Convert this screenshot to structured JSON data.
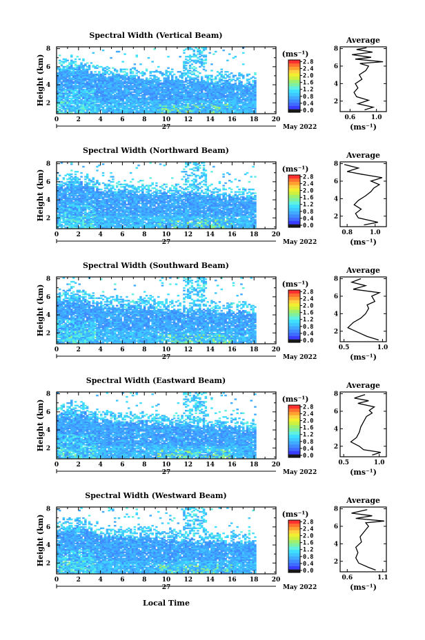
{
  "x_axis_title": "Local Time",
  "date_suffix": "May 2022",
  "day_label": "27",
  "y_axis_title": "Height (km)",
  "unit_label": "(ms⁻¹)",
  "profile_title": "Average",
  "profile_xlabel": "(ms⁻¹)",
  "colors": {
    "colormap": [
      "#1a1a1a",
      "#3a3cff",
      "#3f6cff",
      "#3f8cff",
      "#3faaff",
      "#3fc8ff",
      "#3fe0ff",
      "#5ff0e0",
      "#7ff0a0",
      "#a0f070",
      "#d0f040",
      "#f0f030",
      "#ffd040",
      "#ffa030",
      "#ff7030",
      "#ff3030"
    ]
  },
  "chart_data": [
    {
      "type": "heatmap",
      "title": "Spectral Width (Vertical Beam)",
      "xlabel": "Local Time",
      "ylabel": "Height (km)",
      "xlim": [
        0,
        20
      ],
      "ylim": [
        0.8,
        8.2
      ],
      "xticks": [
        "0",
        "2",
        "4",
        "6",
        "8",
        "10",
        "12",
        "14",
        "16",
        "18",
        "20"
      ],
      "yticks": [
        "2",
        "4",
        "6",
        "8"
      ],
      "data_extent_hours": [
        0,
        18
      ],
      "colorbar": {
        "label": "(ms⁻¹)",
        "ticks": [
          "2.8",
          "2.4",
          "2.0",
          "1.6",
          "1.2",
          "0.8",
          "0.4",
          "0.0"
        ],
        "range": [
          0.0,
          2.8
        ]
      },
      "profile": {
        "title": "Average",
        "xlabel": "(ms⁻¹)",
        "xticks": [
          "0.6",
          "1.0"
        ],
        "xlim": [
          0.45,
          1.15
        ],
        "yticks": [
          "2",
          "4",
          "6",
          "8"
        ],
        "points": [
          [
            0.82,
            1.0
          ],
          [
            0.95,
            1.3
          ],
          [
            0.72,
            1.7
          ],
          [
            0.88,
            2.1
          ],
          [
            0.7,
            2.5
          ],
          [
            0.66,
            3.0
          ],
          [
            0.72,
            3.5
          ],
          [
            0.68,
            4.0
          ],
          [
            0.78,
            4.5
          ],
          [
            0.74,
            5.0
          ],
          [
            0.84,
            5.5
          ],
          [
            0.88,
            6.0
          ],
          [
            0.75,
            6.3
          ],
          [
            1.1,
            6.5
          ],
          [
            0.68,
            6.8
          ],
          [
            0.92,
            7.0
          ],
          [
            0.63,
            7.3
          ],
          [
            0.94,
            7.6
          ],
          [
            0.7,
            7.9
          ],
          [
            0.85,
            8.1
          ]
        ]
      }
    },
    {
      "type": "heatmap",
      "title": "Spectral Width (Northward Beam)",
      "xlabel": "Local Time",
      "ylabel": "Height (km)",
      "xlim": [
        0,
        20
      ],
      "ylim": [
        0.8,
        8.2
      ],
      "xticks": [
        "0",
        "2",
        "4",
        "6",
        "8",
        "10",
        "12",
        "14",
        "16",
        "18",
        "20"
      ],
      "yticks": [
        "2",
        "4",
        "6",
        "8"
      ],
      "data_extent_hours": [
        0,
        18
      ],
      "colorbar": {
        "label": "(ms⁻¹)",
        "ticks": [
          "2.8",
          "2.4",
          "2.0",
          "1.6",
          "1.2",
          "0.8",
          "0.4",
          "0.0"
        ],
        "range": [
          0.0,
          2.8
        ]
      },
      "profile": {
        "title": "Average",
        "xlabel": "(ms⁻¹)",
        "xticks": [
          "0.8",
          "1.0"
        ],
        "xlim": [
          0.75,
          1.08
        ],
        "yticks": [
          "2",
          "4",
          "6",
          "8"
        ],
        "points": [
          [
            0.92,
            1.0
          ],
          [
            1.02,
            1.3
          ],
          [
            0.88,
            1.8
          ],
          [
            0.86,
            2.3
          ],
          [
            0.9,
            2.8
          ],
          [
            0.85,
            3.3
          ],
          [
            0.88,
            3.8
          ],
          [
            0.93,
            4.3
          ],
          [
            0.97,
            4.8
          ],
          [
            0.99,
            5.2
          ],
          [
            1.03,
            5.6
          ],
          [
            0.97,
            6.0
          ],
          [
            1.05,
            6.4
          ],
          [
            0.9,
            6.8
          ],
          [
            0.8,
            7.1
          ],
          [
            0.88,
            7.5
          ],
          [
            0.78,
            7.9
          ]
        ]
      }
    },
    {
      "type": "heatmap",
      "title": "Spectral Width (Southward Beam)",
      "xlabel": "Local Time",
      "ylabel": "Height (km)",
      "xlim": [
        0,
        20
      ],
      "ylim": [
        0.8,
        8.2
      ],
      "xticks": [
        "0",
        "2",
        "4",
        "6",
        "8",
        "10",
        "12",
        "14",
        "16",
        "18",
        "20"
      ],
      "yticks": [
        "2",
        "4",
        "6",
        "8"
      ],
      "data_extent_hours": [
        0,
        18
      ],
      "colorbar": {
        "label": "(ms⁻¹)",
        "ticks": [
          "2.8",
          "2.4",
          "2.0",
          "1.6",
          "1.2",
          "0.8",
          "0.4",
          "0.0"
        ],
        "range": [
          0.0,
          2.8
        ]
      },
      "profile": {
        "title": "Average",
        "xlabel": "(ms⁻¹)",
        "xticks": [
          "0.5",
          "1.0"
        ],
        "xlim": [
          0.45,
          1.05
        ],
        "yticks": [
          "2",
          "4",
          "6",
          "8"
        ],
        "points": [
          [
            0.95,
            1.0
          ],
          [
            0.8,
            1.4
          ],
          [
            0.7,
            1.8
          ],
          [
            0.55,
            2.4
          ],
          [
            0.62,
            3.0
          ],
          [
            0.72,
            3.5
          ],
          [
            0.78,
            4.0
          ],
          [
            0.82,
            4.6
          ],
          [
            0.8,
            5.0
          ],
          [
            0.9,
            5.4
          ],
          [
            0.86,
            6.0
          ],
          [
            0.96,
            6.4
          ],
          [
            0.62,
            6.8
          ],
          [
            0.78,
            7.2
          ],
          [
            0.6,
            7.6
          ],
          [
            0.72,
            8.0
          ]
        ]
      }
    },
    {
      "type": "heatmap",
      "title": "Spectral Width (Eastward Beam)",
      "xlabel": "Local Time",
      "ylabel": "Height (km)",
      "xlim": [
        0,
        20
      ],
      "ylim": [
        0.8,
        8.2
      ],
      "xticks": [
        "0",
        "2",
        "4",
        "6",
        "8",
        "10",
        "12",
        "14",
        "16",
        "18",
        "20"
      ],
      "yticks": [
        "2",
        "4",
        "6",
        "8"
      ],
      "data_extent_hours": [
        0,
        18
      ],
      "colorbar": {
        "label": "(ms⁻¹)",
        "ticks": [
          "2.8",
          "2.4",
          "2.0",
          "1.6",
          "1.2",
          "0.8",
          "0.4",
          "0.0"
        ],
        "range": [
          0.0,
          2.8
        ]
      },
      "profile": {
        "title": "Average",
        "xlabel": "(ms⁻¹)",
        "xticks": [
          "0.5",
          "1.0"
        ],
        "xlim": [
          0.45,
          1.1
        ],
        "yticks": [
          "2",
          "4",
          "6",
          "8"
        ],
        "points": [
          [
            0.9,
            1.0
          ],
          [
            1.02,
            1.3
          ],
          [
            0.78,
            1.6
          ],
          [
            0.72,
            2.0
          ],
          [
            0.6,
            2.5
          ],
          [
            0.68,
            3.0
          ],
          [
            0.72,
            3.6
          ],
          [
            0.74,
            4.2
          ],
          [
            0.78,
            4.8
          ],
          [
            0.82,
            5.4
          ],
          [
            0.9,
            5.8
          ],
          [
            0.86,
            6.1
          ],
          [
            0.93,
            6.5
          ],
          [
            0.7,
            6.9
          ],
          [
            0.85,
            7.2
          ],
          [
            0.65,
            7.5
          ],
          [
            0.8,
            7.9
          ]
        ]
      }
    },
    {
      "type": "heatmap",
      "title": "Spectral Width (Westward Beam)",
      "xlabel": "Local Time",
      "ylabel": "Height (km)",
      "xlim": [
        0,
        20
      ],
      "ylim": [
        0.8,
        8.2
      ],
      "xticks": [
        "0",
        "2",
        "4",
        "6",
        "8",
        "10",
        "12",
        "14",
        "16",
        "18",
        "20"
      ],
      "yticks": [
        "2",
        "4",
        "6",
        "8"
      ],
      "data_extent_hours": [
        0,
        18
      ],
      "colorbar": {
        "label": "(ms⁻¹)",
        "ticks": [
          "2.8",
          "2.4",
          "2.0",
          "1.6",
          "1.2",
          "0.8",
          "0.4",
          "0.0"
        ],
        "range": [
          0.0,
          2.8
        ]
      },
      "profile": {
        "title": "Average",
        "xlabel": "(ms⁻¹)",
        "xticks": [
          "0.6",
          "1.1"
        ],
        "xlim": [
          0.5,
          1.15
        ],
        "yticks": [
          "2",
          "4",
          "6",
          "8"
        ],
        "points": [
          [
            1.0,
            1.0
          ],
          [
            0.9,
            1.3
          ],
          [
            0.76,
            1.8
          ],
          [
            0.72,
            2.4
          ],
          [
            0.75,
            3.0
          ],
          [
            0.72,
            3.6
          ],
          [
            0.8,
            4.2
          ],
          [
            0.78,
            4.8
          ],
          [
            0.84,
            5.4
          ],
          [
            0.9,
            6.0
          ],
          [
            0.86,
            6.4
          ],
          [
            1.12,
            6.6
          ],
          [
            0.72,
            6.9
          ],
          [
            0.95,
            7.2
          ],
          [
            0.66,
            7.5
          ],
          [
            0.88,
            7.9
          ]
        ]
      }
    }
  ]
}
